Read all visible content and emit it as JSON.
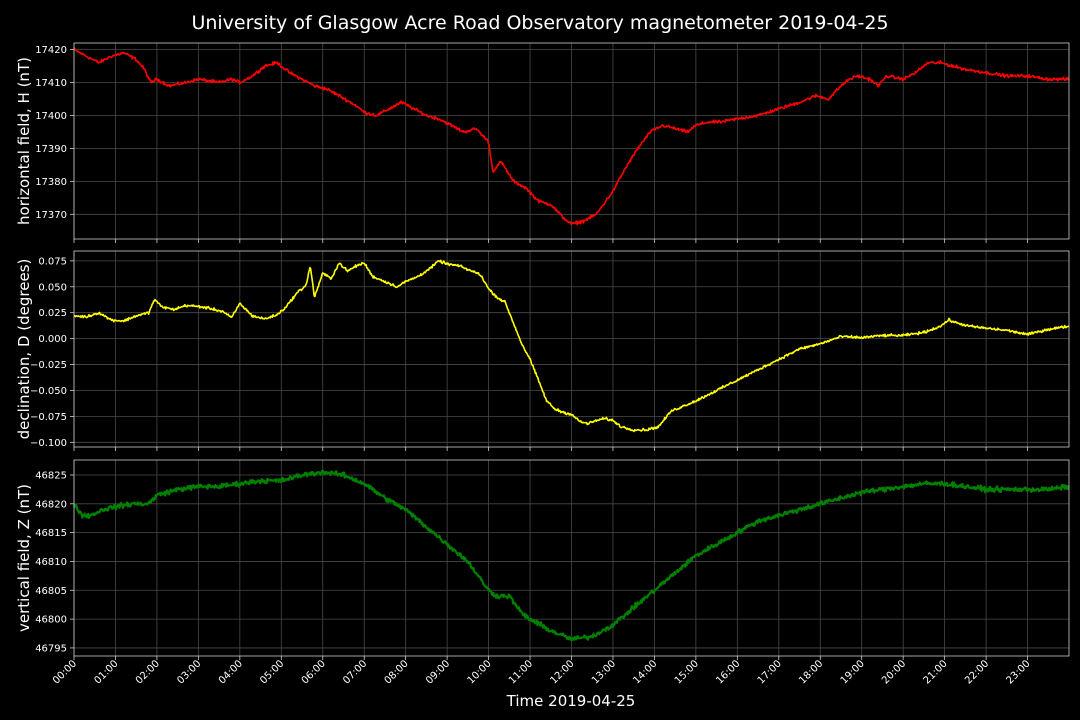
{
  "chart_data": {
    "type": "line",
    "title": "University of Glasgow Acre Road Observatory magnetometer 2019-04-25",
    "xlabel": "Time 2019-04-25",
    "x_unit": "hours",
    "x_ticks": [
      "00:00",
      "01:00",
      "02:00",
      "03:00",
      "04:00",
      "05:00",
      "06:00",
      "07:00",
      "08:00",
      "09:00",
      "10:00",
      "11:00",
      "12:00",
      "13:00",
      "14:00",
      "15:00",
      "16:00",
      "17:00",
      "18:00",
      "19:00",
      "20:00",
      "21:00",
      "22:00",
      "23:00"
    ],
    "xlim": [
      0,
      24
    ],
    "grid": true,
    "panels": [
      {
        "ylabel": "horizontal field, H (nT)",
        "color": "#ff0000",
        "ylim": [
          17362.5,
          17422.0
        ],
        "yticks": [
          17370,
          17380,
          17390,
          17400,
          17410,
          17420
        ],
        "ytick_labels": [
          "17370",
          "17380",
          "17390",
          "17400",
          "17410",
          "17420"
        ],
        "noise": 0.7,
        "x": [
          0,
          0.3,
          0.6,
          0.9,
          1.2,
          1.5,
          1.7,
          1.85,
          2.0,
          2.3,
          2.7,
          3.0,
          3.5,
          3.8,
          4.0,
          4.3,
          4.6,
          4.9,
          5.2,
          5.5,
          5.8,
          6.1,
          6.4,
          6.8,
          7.0,
          7.3,
          7.6,
          7.9,
          8.2,
          8.5,
          8.8,
          9.1,
          9.4,
          9.7,
          10.0,
          10.1,
          10.3,
          10.6,
          10.9,
          11.2,
          11.5,
          11.8,
          12.0,
          12.3,
          12.6,
          13.0,
          13.3,
          13.6,
          13.9,
          14.2,
          14.5,
          14.8,
          15.0,
          15.3,
          15.6,
          16.0,
          16.5,
          17.0,
          17.5,
          17.9,
          18.2,
          18.5,
          18.7,
          18.9,
          19.2,
          19.4,
          19.6,
          20.0,
          20.3,
          20.6,
          20.9,
          21.2,
          21.5,
          22.0,
          22.5,
          23.0,
          23.5,
          24.0
        ],
        "values": [
          17420,
          17418,
          17416,
          17418,
          17419,
          17417,
          17414,
          17410,
          17411,
          17409,
          17410,
          17411,
          17410,
          17411,
          17410,
          17412,
          17415,
          17416,
          17413,
          17411,
          17409,
          17408,
          17406,
          17403,
          17401,
          17400,
          17402,
          17404,
          17402,
          17400,
          17399,
          17397,
          17395,
          17396,
          17392,
          17383,
          17386,
          17380,
          17378,
          17374,
          17373,
          17369,
          17367,
          17368,
          17370,
          17377,
          17384,
          17390,
          17395,
          17397,
          17396,
          17395,
          17397,
          17398,
          17398,
          17399,
          17400,
          17402,
          17404,
          17406,
          17405,
          17409,
          17411,
          17412,
          17411,
          17409,
          17412,
          17411,
          17413,
          17416,
          17416,
          17415,
          17414,
          17413,
          17412,
          17412,
          17411,
          17411
        ]
      },
      {
        "ylabel": "declination, D (degrees)",
        "color": "#ffff00",
        "ylim": [
          -0.1045,
          0.0845
        ],
        "yticks": [
          -0.1,
          -0.075,
          -0.05,
          -0.025,
          0.0,
          0.025,
          0.05,
          0.075
        ],
        "ytick_labels": [
          "−0.100",
          "−0.075",
          "−0.050",
          "−0.025",
          "0.000",
          "0.025",
          "0.050",
          "0.075"
        ],
        "noise": 0.0018,
        "x": [
          0,
          0.3,
          0.6,
          0.9,
          1.2,
          1.5,
          1.8,
          1.95,
          2.1,
          2.4,
          2.7,
          3.0,
          3.3,
          3.6,
          3.8,
          4.0,
          4.3,
          4.6,
          4.9,
          5.1,
          5.3,
          5.4,
          5.5,
          5.6,
          5.7,
          5.8,
          6.0,
          6.2,
          6.4,
          6.6,
          6.8,
          7.0,
          7.2,
          7.5,
          7.8,
          8.0,
          8.3,
          8.6,
          8.8,
          9.0,
          9.3,
          9.6,
          9.8,
          10.0,
          10.2,
          10.4,
          10.6,
          10.8,
          11.0,
          11.2,
          11.4,
          11.6,
          11.8,
          12.0,
          12.2,
          12.4,
          12.6,
          12.8,
          13.0,
          13.2,
          13.5,
          13.8,
          14.1,
          14.4,
          14.7,
          15.0,
          15.5,
          16.0,
          16.5,
          17.0,
          17.5,
          18.0,
          18.5,
          19.0,
          19.5,
          20.0,
          20.5,
          20.9,
          21.1,
          21.3,
          21.6,
          22.0,
          22.5,
          23.0,
          23.5,
          24.0
        ],
        "values": [
          0.022,
          0.021,
          0.025,
          0.018,
          0.017,
          0.022,
          0.025,
          0.038,
          0.031,
          0.028,
          0.032,
          0.031,
          0.029,
          0.026,
          0.02,
          0.034,
          0.022,
          0.019,
          0.023,
          0.03,
          0.04,
          0.045,
          0.048,
          0.052,
          0.07,
          0.04,
          0.063,
          0.058,
          0.073,
          0.065,
          0.07,
          0.073,
          0.06,
          0.055,
          0.05,
          0.055,
          0.06,
          0.068,
          0.075,
          0.072,
          0.07,
          0.065,
          0.062,
          0.048,
          0.04,
          0.035,
          0.015,
          -0.005,
          -0.02,
          -0.04,
          -0.06,
          -0.068,
          -0.071,
          -0.073,
          -0.08,
          -0.082,
          -0.079,
          -0.077,
          -0.079,
          -0.085,
          -0.088,
          -0.088,
          -0.085,
          -0.07,
          -0.065,
          -0.06,
          -0.05,
          -0.04,
          -0.03,
          -0.02,
          -0.01,
          -0.005,
          0.002,
          0.001,
          0.003,
          0.003,
          0.006,
          0.012,
          0.018,
          0.015,
          0.012,
          0.01,
          0.008,
          0.004,
          0.009,
          0.012
        ]
      },
      {
        "ylabel": "vertical field, Z (nT)",
        "color": "#008000",
        "ylim": [
          46793.6,
          46827.6
        ],
        "yticks": [
          46795,
          46800,
          46805,
          46810,
          46815,
          46820,
          46825
        ],
        "ytick_labels": [
          "46795",
          "46800",
          "46805",
          "46810",
          "46815",
          "46820",
          "46825"
        ],
        "noise": 0.6,
        "x": [
          0,
          0.2,
          0.4,
          0.7,
          1.0,
          1.4,
          1.8,
          2.0,
          2.5,
          3.0,
          3.5,
          4.0,
          4.5,
          5.0,
          5.5,
          6.0,
          6.5,
          7.0,
          7.5,
          8.0,
          8.5,
          9.0,
          9.5,
          10.0,
          10.2,
          10.5,
          10.8,
          11.0,
          11.5,
          12.0,
          12.5,
          13.0,
          13.5,
          14.0,
          14.5,
          15.0,
          15.5,
          16.0,
          16.5,
          17.0,
          17.5,
          18.0,
          18.5,
          19.0,
          19.5,
          20.0,
          20.5,
          21.0,
          21.5,
          22.0,
          22.5,
          23.0,
          23.5,
          24.0
        ],
        "values": [
          46820,
          46818,
          46818,
          46819,
          46819.5,
          46820,
          46820,
          46821.5,
          46822.5,
          46823,
          46823,
          46823.5,
          46824,
          46824,
          46825,
          46825.5,
          46825,
          46823.5,
          46821,
          46819,
          46816,
          46813,
          46810,
          46805,
          46804,
          46804,
          46801,
          46800,
          46798,
          46796.5,
          46797,
          46799,
          46802,
          46805,
          46808,
          46811,
          46813,
          46815,
          46817,
          46818,
          46819,
          46820,
          46821,
          46822,
          46822.5,
          46823,
          46823.5,
          46823.5,
          46823,
          46822.5,
          46822.5,
          46822.5,
          46822.5,
          46823
        ]
      }
    ]
  }
}
